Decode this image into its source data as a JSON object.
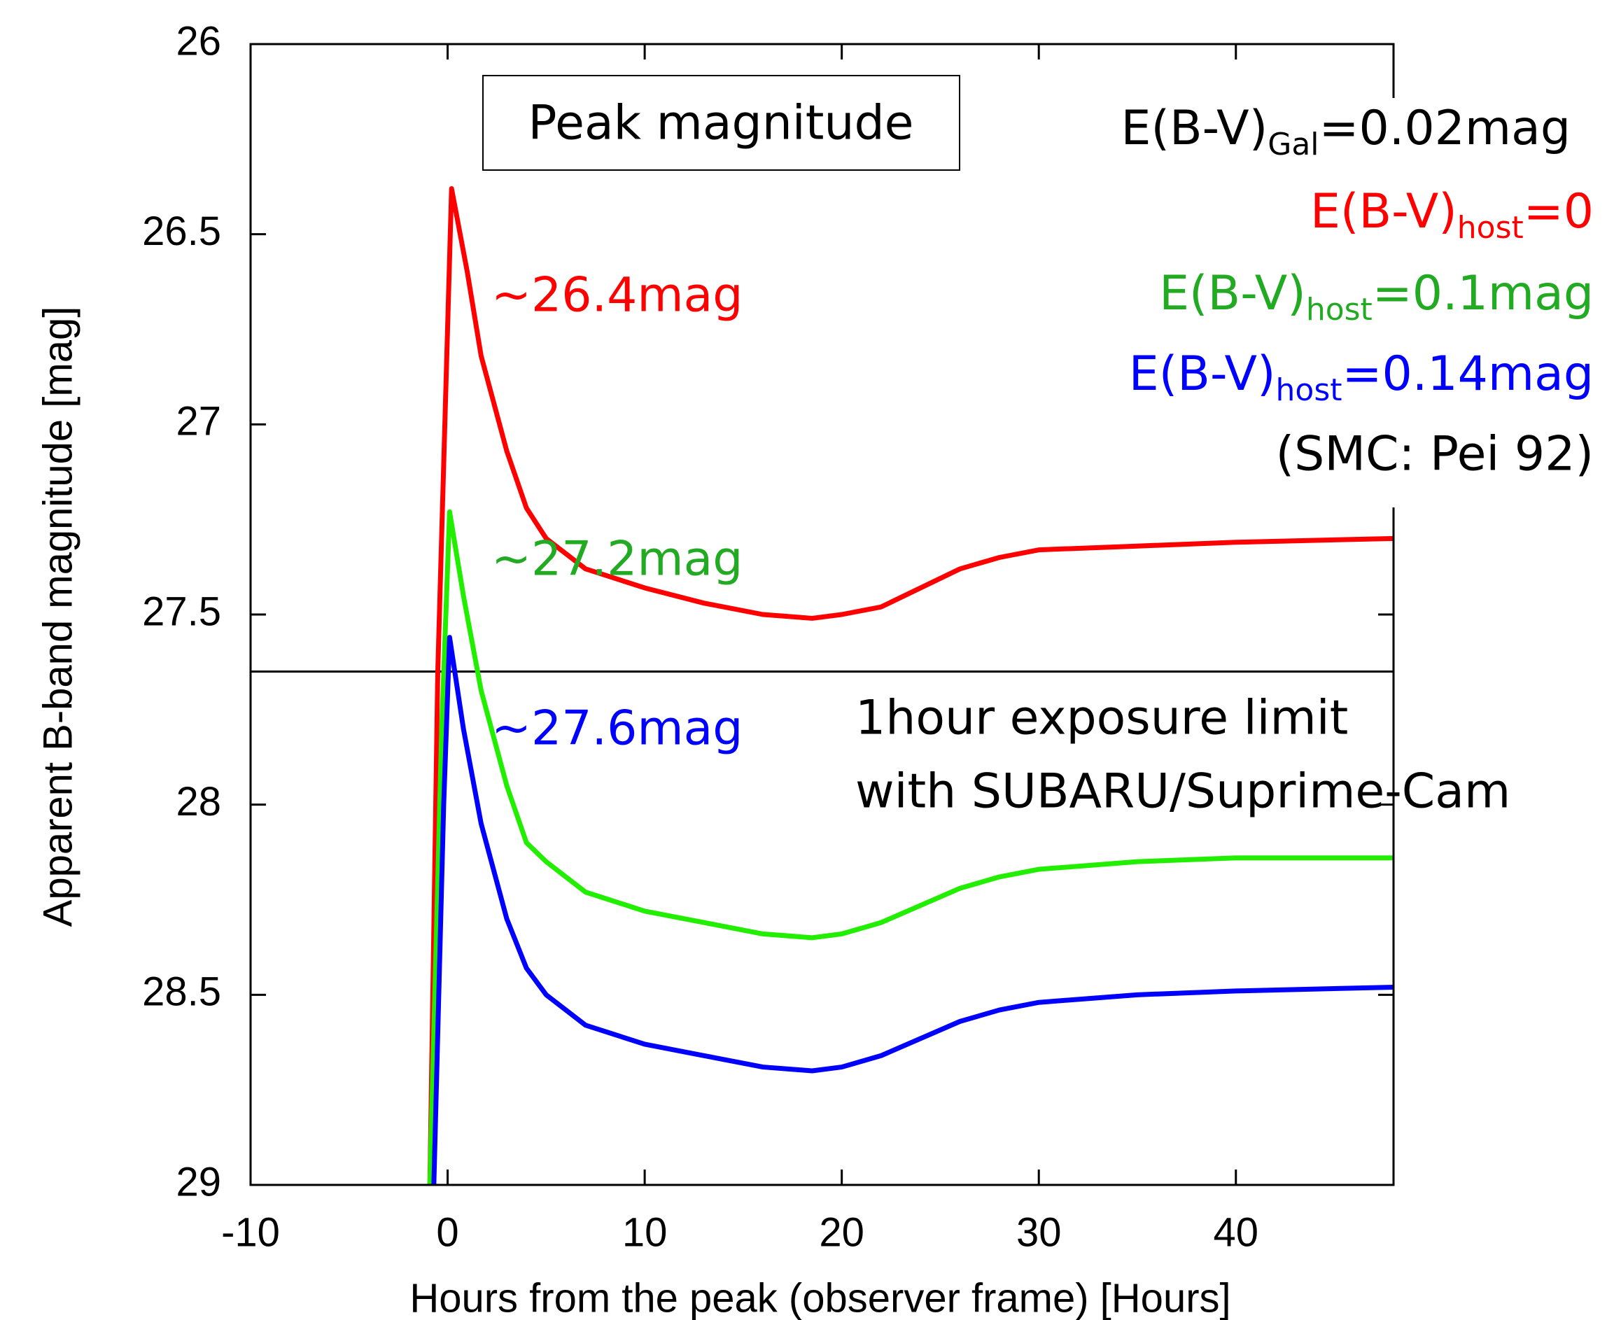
{
  "chart_data": {
    "type": "line",
    "x_label": "Hours from the peak (observer frame) [Hours]",
    "y_label": "Apparent B-band magnitude [mag]",
    "xlim": [
      -10,
      48
    ],
    "xticks": [
      -10,
      0,
      10,
      20,
      30,
      40
    ],
    "ylim": [
      29,
      26
    ],
    "yticks": [
      26,
      26.5,
      27,
      27.5,
      28,
      28.5,
      29
    ],
    "y_inverted": true,
    "hline": 27.65,
    "series": [
      {
        "name": [
          "E(B-V)",
          "host",
          "=0"
        ],
        "color": "#ff0000",
        "x": [
          -0.9,
          -0.5,
          0.2,
          1,
          1.7,
          3,
          4,
          5,
          7,
          10,
          13,
          16,
          18.5,
          20,
          22,
          26,
          28,
          30,
          35,
          40,
          48
        ],
        "values": [
          29.0,
          27.65,
          26.38,
          26.6,
          26.82,
          27.07,
          27.22,
          27.3,
          27.38,
          27.43,
          27.47,
          27.5,
          27.51,
          27.5,
          27.48,
          27.38,
          27.35,
          27.33,
          27.32,
          27.31,
          27.3
        ]
      },
      {
        "name": [
          "E(B-V)",
          "host",
          "=0.1mag"
        ],
        "color": "#22ee00",
        "x": [
          -0.9,
          -0.3,
          0.1,
          0.8,
          1.7,
          3,
          4,
          5,
          7,
          10,
          13,
          16,
          18.5,
          20,
          22,
          26,
          28,
          30,
          35,
          40,
          48
        ],
        "values": [
          29.0,
          27.8,
          27.23,
          27.45,
          27.7,
          27.95,
          28.1,
          28.15,
          28.23,
          28.28,
          28.31,
          28.34,
          28.35,
          28.34,
          28.31,
          28.22,
          28.19,
          28.17,
          28.15,
          28.14,
          28.14
        ]
      },
      {
        "name": [
          "E(B-V)",
          "host",
          "=0.14mag"
        ],
        "color": "#0000ff",
        "x": [
          -0.7,
          -0.2,
          0.1,
          0.8,
          1.7,
          3,
          4,
          5,
          7,
          10,
          13,
          16,
          18.5,
          20,
          22,
          26,
          28,
          30,
          35,
          40,
          48
        ],
        "values": [
          29.0,
          28.0,
          27.56,
          27.8,
          28.05,
          28.3,
          28.43,
          28.5,
          28.58,
          28.63,
          28.66,
          28.69,
          28.7,
          28.69,
          28.66,
          28.57,
          28.54,
          28.52,
          28.5,
          28.49,
          28.48
        ]
      }
    ],
    "annotations": {
      "box": "Peak magnitude",
      "galactic": [
        "E(B-V)",
        "Gal",
        "=0.02mag"
      ],
      "extinction_law": "(SMC: Pei 92)",
      "peaks": [
        "~26.4mag",
        "~27.2mag",
        "~27.6mag"
      ],
      "limit": [
        "1hour exposure limit",
        "with SUBARU/Suprime-Cam"
      ]
    }
  }
}
